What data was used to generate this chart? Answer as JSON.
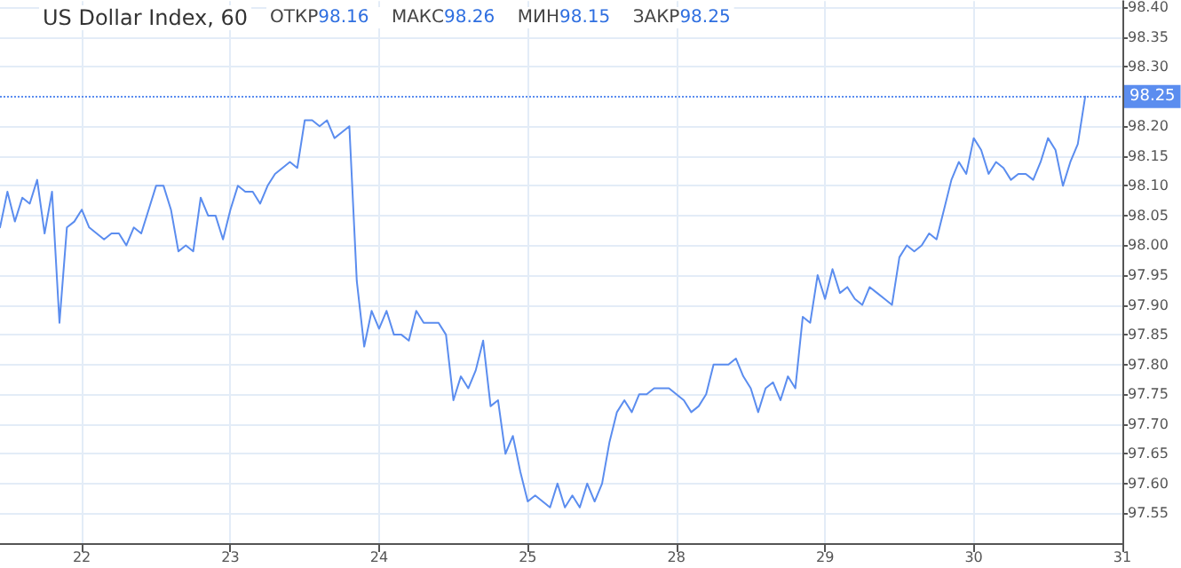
{
  "chart_data": {
    "type": "line",
    "title": "US Dollar Index, 60",
    "annotations": [
      "ОТКР98.16",
      "МАКС98.26",
      "МИН98.15",
      "ЗАКР98.25"
    ],
    "categories": [
      null,
      null,
      null,
      null,
      null,
      null,
      null,
      null,
      null,
      null,
      null,
      "22",
      null,
      null,
      null,
      null,
      null,
      null,
      null,
      null,
      null,
      null,
      null,
      null,
      null,
      null,
      null,
      null,
      null,
      null,
      null,
      "23",
      null,
      null,
      null,
      null,
      null,
      null,
      null,
      null,
      null,
      null,
      null,
      null,
      null,
      null,
      null,
      null,
      null,
      null,
      null,
      "24",
      null,
      null,
      null,
      null,
      null,
      null,
      null,
      null,
      null,
      null,
      null,
      null,
      null,
      null,
      null,
      null,
      null,
      null,
      null,
      "25",
      null,
      null,
      null,
      null,
      null,
      null,
      null,
      null,
      null,
      null,
      null,
      null,
      null,
      null,
      null,
      null,
      null,
      null,
      null,
      "28",
      null,
      null,
      null,
      null,
      null,
      null,
      null,
      null,
      null,
      null,
      null,
      null,
      null,
      null,
      null,
      null,
      null,
      null,
      null,
      "29",
      null,
      null,
      null,
      null,
      null,
      null,
      null,
      null,
      null,
      null,
      null,
      null,
      null,
      null,
      null,
      null,
      null,
      null,
      null,
      "30",
      null,
      null,
      null,
      null,
      null,
      null,
      null,
      null,
      null,
      null,
      null,
      null,
      null,
      null,
      null,
      null,
      null,
      null,
      null,
      "31"
    ],
    "series": [
      {
        "color": "#5b8def",
        "values": [
          98.03,
          98.09,
          98.04,
          98.08,
          98.07,
          98.11,
          98.02,
          98.09,
          97.87,
          98.03,
          98.04,
          98.06,
          98.03,
          98.02,
          98.01,
          98.02,
          98.02,
          98.0,
          98.03,
          98.02,
          98.06,
          98.1,
          98.1,
          98.06,
          97.99,
          98.0,
          97.99,
          98.08,
          98.05,
          98.05,
          98.01,
          98.06,
          98.1,
          98.09,
          98.09,
          98.07,
          98.1,
          98.12,
          98.13,
          98.14,
          98.13,
          98.21,
          98.21,
          98.2,
          98.21,
          98.18,
          98.19,
          98.2,
          97.94,
          97.83,
          97.89,
          97.86,
          97.89,
          97.85,
          97.85,
          97.84,
          97.89,
          97.87,
          97.87,
          97.87,
          97.85,
          97.74,
          97.78,
          97.76,
          97.79,
          97.84,
          97.73,
          97.74,
          97.65,
          97.68,
          97.62,
          97.57,
          97.58,
          97.57,
          97.56,
          97.6,
          97.56,
          97.58,
          97.56,
          97.6,
          97.57,
          97.6,
          97.67,
          97.72,
          97.74,
          97.72,
          97.75,
          97.75,
          97.76,
          97.76,
          97.76,
          97.75,
          97.74,
          97.72,
          97.73,
          97.75,
          97.8,
          97.8,
          97.8,
          97.81,
          97.78,
          97.76,
          97.72,
          97.76,
          97.77,
          97.74,
          97.78,
          97.76,
          97.88,
          97.87,
          97.95,
          97.91,
          97.96,
          97.92,
          97.93,
          97.91,
          97.9,
          97.93,
          97.92,
          97.91,
          97.9,
          97.98,
          98.0,
          97.99,
          98.0,
          98.02,
          98.01,
          98.06,
          98.11,
          98.14,
          98.12,
          98.18,
          98.16,
          98.12,
          98.14,
          98.13,
          98.11,
          98.12,
          98.12,
          98.11,
          98.14,
          98.18,
          98.16,
          98.1,
          98.14,
          98.17,
          98.25,
          null,
          null,
          null,
          null,
          null
        ]
      }
    ],
    "ylim": [
      97.5,
      98.41
    ],
    "yticks": [
      97.55,
      {
        "value": 97.6,
        "label": "97.60"
      },
      97.65,
      {
        "value": 97.7,
        "label": "97.70"
      },
      97.75,
      {
        "value": 97.8,
        "label": "97.80"
      },
      97.85,
      {
        "value": 97.9,
        "label": "97.90"
      },
      97.95,
      {
        "value": 98,
        "label": "98.00"
      },
      98.05,
      {
        "value": 98.1,
        "label": "98.10"
      },
      98.15,
      {
        "value": 98.2,
        "label": "98.20"
      },
      {
        "value": 98.3,
        "label": "98.30"
      },
      98.35,
      {
        "value": 98.4,
        "label": "98.40"
      }
    ],
    "ref_lines": [
      {
        "axis": "y",
        "value": 98.25,
        "label": "98.25",
        "color": "#5b8def",
        "line_style": "dotted"
      }
    ],
    "grid": true,
    "marker": "none",
    "line_style": "solid"
  }
}
